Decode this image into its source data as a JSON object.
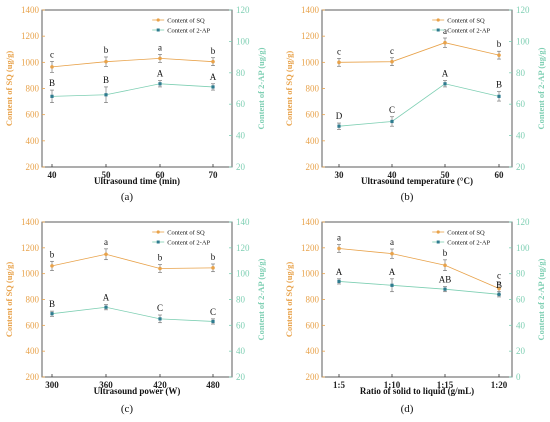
{
  "chart_data": [
    {
      "type": "line",
      "panel_label": "(a)",
      "xlabel": "Ultrasound time (min)",
      "ylabel_left": "Content of SQ (ug/g)",
      "ylabel_right": "Content of 2-AP (ug/g)",
      "categories": [
        "40",
        "50",
        "60",
        "70"
      ],
      "ylim_left": [
        200,
        1400
      ],
      "ylim_right": [
        20,
        120
      ],
      "yticks_left": [
        200,
        400,
        600,
        800,
        1000,
        1200,
        1400
      ],
      "yticks_right": [
        20,
        40,
        60,
        80,
        100,
        120
      ],
      "legend": [
        "Content of SQ",
        "Content of 2-AP"
      ],
      "series": [
        {
          "name": "Content of SQ",
          "axis": "left",
          "color": "#e8a24a",
          "values": [
            965,
            1005,
            1030,
            1005
          ],
          "letters": [
            "c",
            "b",
            "a",
            "b"
          ]
        },
        {
          "name": "Content of 2-AP",
          "axis": "right",
          "color": "#2f7b8f",
          "values": [
            65,
            66,
            73,
            71
          ],
          "letters": [
            "B",
            "B",
            "A",
            "A"
          ]
        }
      ]
    },
    {
      "type": "line",
      "panel_label": "(b)",
      "xlabel": "Ultrasound temperature (°C)",
      "ylabel_left": "Content of SQ (ug/g)",
      "ylabel_right": "Content of 2-AP (ug/g)",
      "categories": [
        "30",
        "40",
        "50",
        "60"
      ],
      "ylim_left": [
        200,
        1400
      ],
      "ylim_right": [
        20,
        120
      ],
      "yticks_left": [
        200,
        400,
        600,
        800,
        1000,
        1200,
        1400
      ],
      "yticks_right": [
        20,
        40,
        60,
        80,
        100,
        120
      ],
      "legend": [
        "Content of SQ",
        "Content of 2-AP"
      ],
      "series": [
        {
          "name": "Content of SQ",
          "axis": "left",
          "color": "#e8a24a",
          "values": [
            1000,
            1005,
            1150,
            1055
          ],
          "letters": [
            "c",
            "c",
            "a",
            "b"
          ]
        },
        {
          "name": "Content of 2-AP",
          "axis": "right",
          "color": "#2f7b8f",
          "values": [
            46,
            49,
            73,
            65
          ],
          "letters": [
            "D",
            "C",
            "A",
            "B"
          ]
        }
      ]
    },
    {
      "type": "line",
      "panel_label": "(c)",
      "xlabel": "Ultrasound power (W)",
      "ylabel_left": "Content of SQ (ug/g)",
      "ylabel_right": "Content of 2-AP (ug/g)",
      "categories": [
        "300",
        "360",
        "420",
        "480"
      ],
      "ylim_left": [
        200,
        1400
      ],
      "ylim_right": [
        20,
        140
      ],
      "yticks_left": [
        200,
        400,
        600,
        800,
        1000,
        1200,
        1400
      ],
      "yticks_right": [
        20,
        40,
        60,
        80,
        100,
        120,
        140
      ],
      "legend": [
        "Content of SQ",
        "Content of 2-AP"
      ],
      "series": [
        {
          "name": "Content of SQ",
          "axis": "left",
          "color": "#e8a24a",
          "values": [
            1060,
            1150,
            1040,
            1045
          ],
          "letters": [
            "b",
            "a",
            "b",
            "b"
          ]
        },
        {
          "name": "Content of 2-AP",
          "axis": "right",
          "color": "#2f7b8f",
          "values": [
            69,
            74,
            65,
            63
          ],
          "letters": [
            "B",
            "A",
            "C",
            "C"
          ]
        }
      ]
    },
    {
      "type": "line",
      "panel_label": "(d)",
      "xlabel": "Ratio of solid to liquid (g/mL)",
      "ylabel_left": "Content of SQ (ug/g)",
      "ylabel_right": "Content of 2-AP (ug/g)",
      "categories": [
        "1:5",
        "1:10",
        "1:15",
        "1:20"
      ],
      "ylim_left": [
        200,
        1400
      ],
      "ylim_right": [
        0,
        120
      ],
      "yticks_left": [
        200,
        400,
        600,
        800,
        1000,
        1200,
        1400
      ],
      "yticks_right": [
        0,
        20,
        40,
        60,
        80,
        100,
        120
      ],
      "legend": [
        "Content of SQ",
        "Content of 2-AP"
      ],
      "series": [
        {
          "name": "Content of SQ",
          "axis": "left",
          "color": "#e8a24a",
          "values": [
            1195,
            1155,
            1065,
            885
          ],
          "letters": [
            "a",
            "a",
            "b",
            "c"
          ]
        },
        {
          "name": "Content of 2-AP",
          "axis": "right",
          "color": "#2f7b8f",
          "values": [
            74,
            71,
            68,
            64
          ],
          "letters": [
            "A",
            "A",
            "AB",
            "B"
          ]
        }
      ]
    }
  ]
}
